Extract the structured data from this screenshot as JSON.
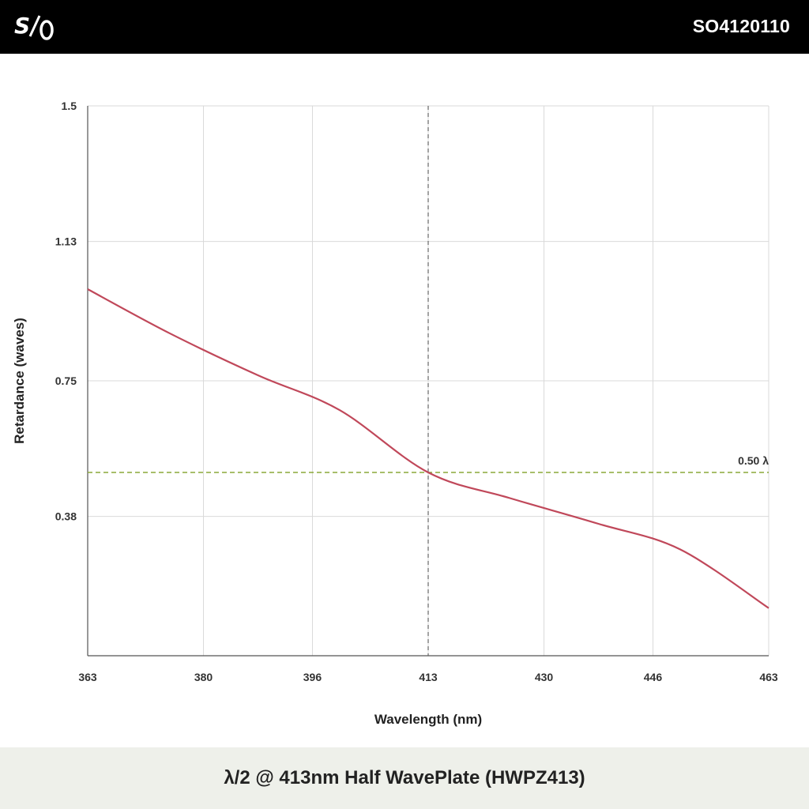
{
  "header": {
    "logo_text": "S/O",
    "part_number": "SO4120110",
    "background": "#000000"
  },
  "footer": {
    "title": "λ/2 @ 413nm Half WavePlate (HWPZ413)",
    "background": "#eef0ea"
  },
  "chart_data": {
    "type": "line",
    "xlabel": "Wavelength (nm)",
    "ylabel": "Retardance (waves)",
    "xlim": [
      363,
      463
    ],
    "ylim": [
      0,
      1.5
    ],
    "x_ticks": [
      363,
      380,
      396,
      413,
      430,
      446,
      463
    ],
    "y_ticks": [
      0.38,
      0.75,
      1.13,
      1.5
    ],
    "grid": true,
    "series": [
      {
        "color": "#c0485a",
        "x": [
          363,
          375,
          388,
          400,
          413,
          425,
          438,
          450,
          463
        ],
        "y": [
          1.0,
          0.88,
          0.765,
          0.67,
          0.5,
          0.43,
          0.36,
          0.29,
          0.13
        ]
      }
    ],
    "reference_lines": [
      {
        "orientation": "horizontal",
        "value": 0.5,
        "label": "0.50 λ",
        "color": "#8aa838",
        "style": "dashed"
      },
      {
        "orientation": "vertical",
        "value": 413,
        "color": "#666666",
        "style": "dashed"
      }
    ]
  }
}
